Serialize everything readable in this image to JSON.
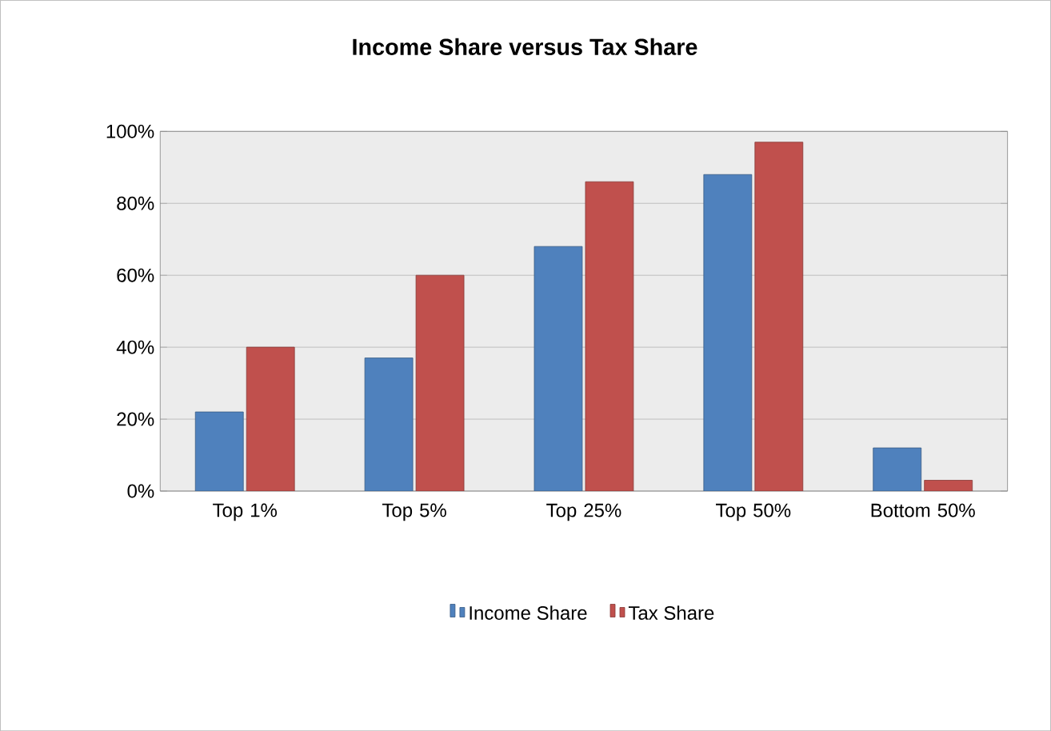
{
  "chart_data": {
    "type": "bar",
    "title": "Income Share versus Tax Share",
    "categories": [
      "Top 1%",
      "Top 5%",
      "Top 25%",
      "Top 50%",
      "Bottom 50%"
    ],
    "series": [
      {
        "name": "Income Share",
        "color": "#4f81bd",
        "values": [
          22,
          37,
          68,
          88,
          12
        ]
      },
      {
        "name": "Tax Share",
        "color": "#c0504d",
        "values": [
          40,
          60,
          86,
          97,
          3
        ]
      }
    ],
    "ylim": [
      0,
      100
    ],
    "yticks": [
      {
        "value": 0,
        "label": "0%"
      },
      {
        "value": 20,
        "label": "20%"
      },
      {
        "value": 40,
        "label": "40%"
      },
      {
        "value": 60,
        "label": "60%"
      },
      {
        "value": 80,
        "label": "80%"
      },
      {
        "value": 100,
        "label": "100%"
      }
    ],
    "grid": "y",
    "legend": "bottom"
  }
}
